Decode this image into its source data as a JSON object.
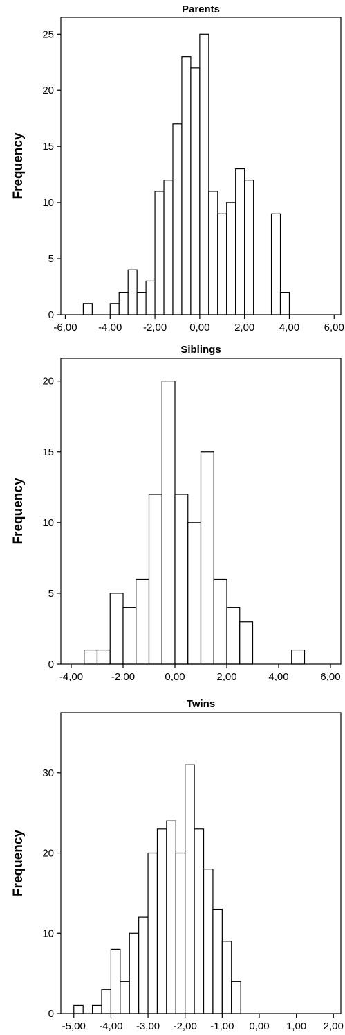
{
  "chart_data": [
    {
      "type": "bar",
      "title": "Parents",
      "ylabel": "Frequency",
      "xlabel": "",
      "xlim": [
        -6.2,
        6.3
      ],
      "ylim": [
        0,
        26.5
      ],
      "xticks": [
        -6,
        -4,
        -2,
        0,
        2,
        4,
        6
      ],
      "xtick_labels": [
        "-6,00",
        "-4,00",
        "-2,00",
        "0,00",
        "2,00",
        "4,00",
        "6,00"
      ],
      "yticks": [
        0,
        5,
        10,
        15,
        20,
        25
      ],
      "ytick_labels": [
        "0",
        "5",
        "10",
        "15",
        "20",
        "25"
      ],
      "grid": false,
      "bins": [
        {
          "x0": -5.2,
          "x1": -4.8,
          "value": 1
        },
        {
          "x0": -4.0,
          "x1": -3.6,
          "value": 1
        },
        {
          "x0": -3.6,
          "x1": -3.2,
          "value": 2
        },
        {
          "x0": -3.2,
          "x1": -2.8,
          "value": 4
        },
        {
          "x0": -2.8,
          "x1": -2.4,
          "value": 2
        },
        {
          "x0": -2.4,
          "x1": -2.0,
          "value": 3
        },
        {
          "x0": -2.0,
          "x1": -1.6,
          "value": 11
        },
        {
          "x0": -1.6,
          "x1": -1.2,
          "value": 12
        },
        {
          "x0": -1.2,
          "x1": -0.8,
          "value": 17
        },
        {
          "x0": -0.8,
          "x1": -0.4,
          "value": 23
        },
        {
          "x0": -0.4,
          "x1": 0.0,
          "value": 22
        },
        {
          "x0": 0.0,
          "x1": 0.4,
          "value": 25
        },
        {
          "x0": 0.4,
          "x1": 0.8,
          "value": 11
        },
        {
          "x0": 0.8,
          "x1": 1.2,
          "value": 9
        },
        {
          "x0": 1.2,
          "x1": 1.6,
          "value": 10
        },
        {
          "x0": 1.6,
          "x1": 2.0,
          "value": 13
        },
        {
          "x0": 2.0,
          "x1": 2.4,
          "value": 12
        },
        {
          "x0": 3.2,
          "x1": 3.6,
          "value": 9
        },
        {
          "x0": 3.6,
          "x1": 4.0,
          "value": 2
        }
      ]
    },
    {
      "type": "bar",
      "title": "Siblings",
      "ylabel": "Frequency",
      "xlabel": "",
      "xlim": [
        -4.4,
        6.4
      ],
      "ylim": [
        0,
        21.6
      ],
      "xticks": [
        -4,
        -2,
        0,
        2,
        4,
        6
      ],
      "xtick_labels": [
        "-4,00",
        "-2,00",
        "0,00",
        "2,00",
        "4,00",
        "6,00"
      ],
      "yticks": [
        0,
        5,
        10,
        15,
        20
      ],
      "ytick_labels": [
        "0",
        "5",
        "10",
        "15",
        "20"
      ],
      "grid": false,
      "bins": [
        {
          "x0": -3.5,
          "x1": -3.0,
          "value": 1
        },
        {
          "x0": -3.0,
          "x1": -2.5,
          "value": 1
        },
        {
          "x0": -2.5,
          "x1": -2.0,
          "value": 5
        },
        {
          "x0": -2.0,
          "x1": -1.5,
          "value": 4
        },
        {
          "x0": -1.5,
          "x1": -1.0,
          "value": 6
        },
        {
          "x0": -1.0,
          "x1": -0.5,
          "value": 12
        },
        {
          "x0": -0.5,
          "x1": 0.0,
          "value": 20
        },
        {
          "x0": 0.0,
          "x1": 0.5,
          "value": 12
        },
        {
          "x0": 0.5,
          "x1": 1.0,
          "value": 10
        },
        {
          "x0": 1.0,
          "x1": 1.5,
          "value": 15
        },
        {
          "x0": 1.5,
          "x1": 2.0,
          "value": 6
        },
        {
          "x0": 2.0,
          "x1": 2.5,
          "value": 4
        },
        {
          "x0": 2.5,
          "x1": 3.0,
          "value": 3
        },
        {
          "x0": 4.5,
          "x1": 5.0,
          "value": 1
        }
      ]
    },
    {
      "type": "bar",
      "title": "Twins",
      "ylabel": "Frequency",
      "xlabel": "",
      "xlim": [
        -5.35,
        2.2
      ],
      "ylim": [
        0,
        37.5
      ],
      "xticks": [
        -5,
        -4,
        -3,
        -2,
        -1,
        0,
        1,
        2
      ],
      "xtick_labels": [
        "-5,00",
        "-4,00",
        "-3,00",
        "-2,00",
        "-1,00",
        "0,00",
        "1,00",
        "2,00"
      ],
      "yticks": [
        0,
        10,
        20,
        30
      ],
      "ytick_labels": [
        "0",
        "10",
        "20",
        "30"
      ],
      "grid": false,
      "bins": [
        {
          "x0": -5.0,
          "x1": -4.75,
          "value": 1
        },
        {
          "x0": -4.5,
          "x1": -4.25,
          "value": 1
        },
        {
          "x0": -4.25,
          "x1": -4.0,
          "value": 3
        },
        {
          "x0": -4.0,
          "x1": -3.75,
          "value": 8
        },
        {
          "x0": -3.75,
          "x1": -3.5,
          "value": 4
        },
        {
          "x0": -3.5,
          "x1": -3.25,
          "value": 10
        },
        {
          "x0": -3.25,
          "x1": -3.0,
          "value": 12
        },
        {
          "x0": -3.0,
          "x1": -2.75,
          "value": 20
        },
        {
          "x0": -2.75,
          "x1": -2.5,
          "value": 23
        },
        {
          "x0": -2.5,
          "x1": -2.25,
          "value": 24
        },
        {
          "x0": -2.25,
          "x1": -2.0,
          "value": 20
        },
        {
          "x0": -2.0,
          "x1": -1.75,
          "value": 31
        },
        {
          "x0": -1.75,
          "x1": -1.5,
          "value": 23
        },
        {
          "x0": -1.5,
          "x1": -1.25,
          "value": 18
        },
        {
          "x0": -1.25,
          "x1": -1.0,
          "value": 13
        },
        {
          "x0": -1.0,
          "x1": -0.75,
          "value": 9
        },
        {
          "x0": -0.75,
          "x1": -0.5,
          "value": 4
        }
      ]
    }
  ]
}
